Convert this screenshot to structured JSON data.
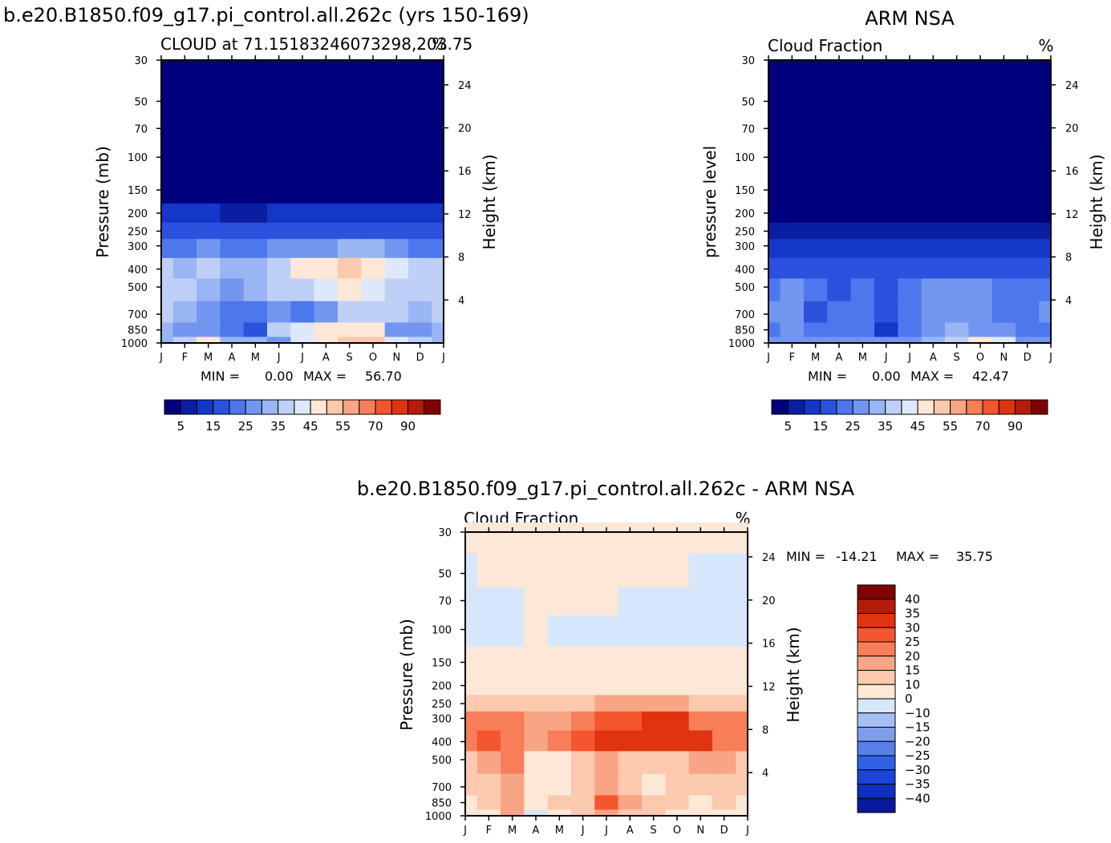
{
  "figure": {
    "title_left": "b.e20.B1850.f09_g17.pi_control.all.262c (yrs 150-169)",
    "title_right": "ARM NSA",
    "title_diff": "b.e20.B1850.f09_g17.pi_control.all.262c - ARM NSA"
  },
  "months": [
    "J",
    "F",
    "M",
    "A",
    "M",
    "J",
    "J",
    "A",
    "S",
    "O",
    "N",
    "D",
    "J"
  ],
  "pressure_ticks": [
    30,
    50,
    70,
    100,
    150,
    200,
    250,
    300,
    400,
    500,
    700,
    850,
    1000
  ],
  "height_ticks": [
    24,
    20,
    16,
    12,
    8,
    4
  ],
  "colors": {
    "abs": [
      "#00007f",
      "#0a1fa0",
      "#1437c8",
      "#2a52de",
      "#4d77ec",
      "#7296f0",
      "#9ab5f3",
      "#bed0f6",
      "#dde9fb",
      "#fde7d6",
      "#fbc9ad",
      "#f8a585",
      "#f77e58",
      "#f4562f",
      "#e0330f",
      "#b51c08",
      "#800000"
    ],
    "diff": [
      "#0b1a9a",
      "#0f2fbe",
      "#1a45d8",
      "#3060e4",
      "#587fe9",
      "#7f9ced",
      "#a6bff3",
      "#d6e6fb",
      "#fde7d6",
      "#fbc9ad",
      "#f8a585",
      "#f77e58",
      "#f4562f",
      "#e0330f",
      "#b51c08",
      "#800000"
    ]
  },
  "chart_data": [
    {
      "type": "heatmap",
      "title": "CLOUD at 71.15183246073298,203.75",
      "right_label": "%",
      "ylabel": "Pressure (mb)",
      "ylabel_right": "Height (km)",
      "stats": {
        "min_label": "MIN =",
        "min": "0.00",
        "max_label": "MAX =",
        "max": "56.70"
      },
      "colorbar_labels": [
        "5",
        "15",
        "25",
        "35",
        "45",
        "55",
        "70",
        "90"
      ],
      "x": [
        "J",
        "F",
        "M",
        "A",
        "M",
        "J",
        "J",
        "A",
        "S",
        "O",
        "N",
        "D",
        "J"
      ],
      "y": [
        1000,
        850,
        700,
        500,
        400,
        300,
        250,
        200
      ],
      "z": [
        [
          26,
          30,
          40,
          25,
          28,
          22,
          35,
          44,
          48,
          49,
          35,
          32,
          26
        ],
        [
          28,
          24,
          20,
          16,
          12,
          30,
          36,
          40,
          42,
          40,
          24,
          24,
          28
        ],
        [
          30,
          28,
          24,
          18,
          15,
          20,
          16,
          24,
          30,
          34,
          32,
          28,
          30
        ],
        [
          30,
          32,
          28,
          22,
          26,
          30,
          34,
          36,
          40,
          36,
          34,
          32,
          30
        ],
        [
          34,
          28,
          30,
          26,
          28,
          34,
          40,
          44,
          48,
          40,
          38,
          32,
          34
        ],
        [
          16,
          18,
          20,
          18,
          18,
          20,
          22,
          24,
          26,
          26,
          22,
          18,
          16
        ],
        [
          10,
          11,
          12,
          10,
          10,
          12,
          12,
          13,
          14,
          14,
          12,
          11,
          10
        ],
        [
          5,
          6,
          5,
          4,
          4,
          5,
          5,
          6,
          6,
          6,
          5,
          5,
          5
        ]
      ]
    },
    {
      "type": "heatmap",
      "title": "Cloud Fraction",
      "right_label": "%",
      "ylabel": "pressure level",
      "ylabel_right": "Height (km)",
      "stats": {
        "min_label": "MIN =",
        "min": "0.00",
        "max_label": "MAX =",
        "max": "42.47"
      },
      "colorbar_labels": [
        "5",
        "15",
        "25",
        "35",
        "45",
        "55",
        "70",
        "90"
      ],
      "x": [
        "J",
        "F",
        "M",
        "A",
        "M",
        "J",
        "J",
        "A",
        "S",
        "O",
        "N",
        "D",
        "J"
      ],
      "y": [
        1000,
        850,
        700,
        500,
        400,
        300,
        250,
        200
      ],
      "z": [
        [
          22,
          22,
          24,
          22,
          20,
          20,
          22,
          28,
          34,
          42,
          36,
          24,
          22
        ],
        [
          16,
          20,
          18,
          18,
          15,
          8,
          16,
          22,
          26,
          24,
          20,
          18,
          16
        ],
        [
          20,
          22,
          14,
          18,
          16,
          14,
          18,
          22,
          24,
          24,
          18,
          16,
          20
        ],
        [
          18,
          20,
          16,
          14,
          16,
          12,
          18,
          20,
          20,
          20,
          16,
          18,
          18
        ],
        [
          14,
          12,
          14,
          12,
          10,
          10,
          14,
          14,
          14,
          12,
          12,
          14,
          14
        ],
        [
          7,
          6,
          5,
          6,
          6,
          7,
          8,
          8,
          7,
          6,
          6,
          7,
          7
        ],
        [
          3,
          3,
          3,
          3,
          3,
          3,
          3,
          3,
          3,
          3,
          3,
          3,
          3
        ],
        [
          1,
          1,
          1,
          1,
          1,
          1,
          1,
          1,
          1,
          1,
          1,
          1,
          1
        ]
      ]
    },
    {
      "type": "heatmap",
      "title": "Cloud Fraction",
      "right_label": "%",
      "ylabel": "Pressure (mb)",
      "ylabel_right": "Height (km)",
      "stats": {
        "min_label": "MIN =",
        "min": "-14.21",
        "max_label": "MAX =",
        "max": "35.75"
      },
      "colorbar_labels": [
        "40",
        "35",
        "30",
        "25",
        "20",
        "15",
        "10",
        "0",
        "-10",
        "-15",
        "-20",
        "-25",
        "-30",
        "-35",
        "-40"
      ],
      "x": [
        "J",
        "F",
        "M",
        "A",
        "M",
        "J",
        "J",
        "A",
        "S",
        "O",
        "N",
        "D",
        "J"
      ],
      "y": [
        1000,
        850,
        700,
        500,
        400,
        300,
        250,
        200,
        150,
        100,
        70,
        50,
        30
      ],
      "z": [
        [
          4,
          8,
          16,
          -2,
          6,
          12,
          16,
          14,
          10,
          6,
          2,
          6,
          4
        ],
        [
          8,
          12,
          18,
          6,
          10,
          14,
          28,
          18,
          12,
          10,
          8,
          10,
          8
        ],
        [
          10,
          14,
          18,
          8,
          6,
          12,
          18,
          10,
          8,
          12,
          10,
          14,
          10
        ],
        [
          14,
          18,
          20,
          8,
          8,
          12,
          18,
          14,
          12,
          14,
          16,
          18,
          14
        ],
        [
          24,
          26,
          22,
          16,
          20,
          26,
          30,
          32,
          34,
          32,
          30,
          24,
          24
        ],
        [
          22,
          24,
          20,
          16,
          18,
          24,
          26,
          28,
          34,
          30,
          24,
          22,
          22
        ],
        [
          12,
          14,
          12,
          10,
          12,
          14,
          16,
          18,
          18,
          16,
          14,
          12,
          12
        ],
        [
          4,
          4,
          4,
          4,
          4,
          4,
          4,
          4,
          4,
          4,
          4,
          4,
          4
        ],
        [
          3,
          3,
          3,
          3,
          3,
          3,
          3,
          3,
          3,
          3,
          3,
          3,
          3
        ],
        [
          -3,
          -3,
          -3,
          2,
          -3,
          -3,
          -3,
          -3,
          -3,
          -3,
          -3,
          -3,
          -3
        ],
        [
          -3,
          -3,
          -3,
          2,
          2,
          2,
          2,
          -3,
          -3,
          -3,
          -3,
          -3,
          -3
        ],
        [
          -3,
          2,
          2,
          2,
          2,
          2,
          2,
          2,
          2,
          2,
          -3,
          -3,
          -3
        ],
        [
          2,
          2,
          2,
          2,
          2,
          2,
          2,
          2,
          2,
          2,
          2,
          2,
          2
        ]
      ]
    }
  ]
}
